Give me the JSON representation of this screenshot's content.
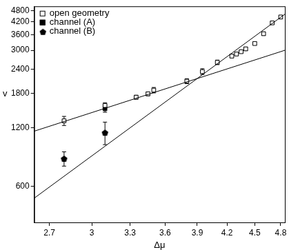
{
  "chart_data": {
    "type": "scatter",
    "x_label": "Δμ",
    "y_label": "v",
    "log": true,
    "grid": false,
    "legend": "upper left",
    "xlim": [
      2.6,
      4.85
    ],
    "ylim": [
      390,
      5050
    ],
    "xticks": [
      2.7,
      3,
      3.3,
      3.6,
      3.9,
      4.2,
      4.5,
      4.8
    ],
    "yticks": [
      600,
      1200,
      1800,
      2400,
      3000,
      3600,
      4200,
      4800
    ],
    "series": [
      {
        "name": "open geometry",
        "color": "#000000",
        "marker": "square_open",
        "x": [
          2.8,
          3.1,
          3.35,
          3.45,
          3.5,
          3.8,
          3.95,
          4.1,
          4.25,
          4.3,
          4.35,
          4.4,
          4.5,
          4.6,
          4.7,
          4.8
        ],
        "values": [
          1300,
          1560,
          1720,
          1790,
          1870,
          2080,
          2330,
          2600,
          2800,
          2870,
          2950,
          3050,
          3250,
          3650,
          4150,
          4450
        ],
        "errors": [
          70,
          50,
          40,
          40,
          60,
          60,
          80,
          70,
          50,
          50,
          50,
          60,
          60,
          70,
          70,
          80
        ]
      },
      {
        "name": "channel (A)",
        "color": "#000000",
        "marker": "square",
        "x": [
          3.1
        ],
        "values": [
          1500
        ],
        "errors": [
          60
        ]
      },
      {
        "name": "channel (B)",
        "color": "#000000",
        "marker": "pentagon",
        "x": [
          2.8,
          3.1
        ],
        "values": [
          830,
          1130
        ],
        "errors": [
          70,
          150
        ]
      }
    ],
    "fit_lines": [
      {
        "color": "#000000",
        "x": [
          2.6,
          4.85
        ],
        "values": [
          1150,
          3000
        ]
      },
      {
        "color": "#000000",
        "x": [
          2.6,
          4.85
        ],
        "values": [
          520,
          4600
        ]
      }
    ]
  }
}
